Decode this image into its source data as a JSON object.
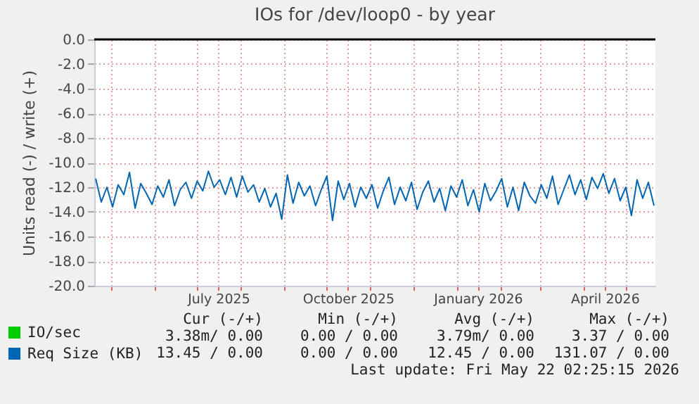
{
  "chart_data": {
    "type": "line",
    "title": "IOs for /dev/loop0 - by year",
    "ylabel": "Units read (-) / write (+)",
    "x": [
      "2025-04-20",
      "2025-04-24",
      "2025-04-28",
      "2025-05-02",
      "2025-05-06",
      "2025-05-10",
      "2025-05-14",
      "2025-05-18",
      "2025-05-22",
      "2025-05-26",
      "2025-05-30",
      "2025-06-03",
      "2025-06-07",
      "2025-06-11",
      "2025-06-15",
      "2025-06-19",
      "2025-06-23",
      "2025-06-27",
      "2025-07-01",
      "2025-07-05",
      "2025-07-09",
      "2025-07-13",
      "2025-07-17",
      "2025-07-21",
      "2025-07-25",
      "2025-07-29",
      "2025-08-02",
      "2025-08-06",
      "2025-08-10",
      "2025-08-14",
      "2025-08-18",
      "2025-08-22",
      "2025-08-26",
      "2025-08-30",
      "2025-09-03",
      "2025-09-07",
      "2025-09-11",
      "2025-09-15",
      "2025-09-19",
      "2025-09-23",
      "2025-09-27",
      "2025-10-01",
      "2025-10-05",
      "2025-10-09",
      "2025-10-13",
      "2025-10-17",
      "2025-10-21",
      "2025-10-25",
      "2025-10-29",
      "2025-11-02",
      "2025-11-06",
      "2025-11-10",
      "2025-11-14",
      "2025-11-18",
      "2025-11-22",
      "2025-11-26",
      "2025-11-30",
      "2025-12-04",
      "2025-12-08",
      "2025-12-12",
      "2025-12-16",
      "2025-12-20",
      "2025-12-24",
      "2025-12-28",
      "2026-01-01",
      "2026-01-05",
      "2026-01-09",
      "2026-01-13",
      "2026-01-17",
      "2026-01-21",
      "2026-01-25",
      "2026-01-29",
      "2026-02-02",
      "2026-02-06",
      "2026-02-10",
      "2026-02-14",
      "2026-02-18",
      "2026-02-22",
      "2026-02-26",
      "2026-03-02",
      "2026-03-06",
      "2026-03-10",
      "2026-03-14",
      "2026-03-18",
      "2026-03-22",
      "2026-03-26",
      "2026-03-30",
      "2026-04-03",
      "2026-04-07",
      "2026-04-11",
      "2026-04-15",
      "2026-04-19",
      "2026-04-23",
      "2026-04-27",
      "2026-05-01",
      "2026-05-05",
      "2026-05-09",
      "2026-05-13",
      "2026-05-17",
      "2026-05-21"
    ],
    "series": [
      {
        "name": "IO/sec",
        "color": "#00cc00",
        "values": [
          null,
          null,
          null,
          null,
          null,
          null,
          null,
          null,
          null,
          null,
          null,
          null,
          null,
          null,
          null,
          null,
          null,
          null,
          null,
          null,
          null,
          null,
          null,
          null,
          null,
          null,
          null,
          null,
          null,
          null,
          null,
          null,
          null,
          null,
          null,
          null,
          null,
          null,
          null,
          null,
          null,
          null,
          null,
          null,
          null,
          null,
          null,
          null,
          null,
          null,
          null,
          null,
          null,
          null,
          null,
          null,
          null,
          null,
          null,
          null,
          null,
          null,
          null,
          null,
          null,
          null,
          null,
          null,
          null,
          null,
          null,
          null,
          null,
          null,
          null,
          null,
          null,
          null,
          null,
          null,
          null,
          null,
          null,
          null,
          null,
          null,
          null,
          null,
          null,
          null,
          null,
          null,
          null,
          null,
          null,
          null,
          null,
          null,
          null,
          null
        ]
      },
      {
        "name": "Req Size (KB)",
        "color": "#0066b3",
        "values": [
          -11.3,
          -13.2,
          -12.0,
          -13.6,
          -11.8,
          -12.6,
          -10.8,
          -13.7,
          -11.7,
          -12.5,
          -13.4,
          -11.9,
          -12.8,
          -11.4,
          -13.5,
          -12.2,
          -11.6,
          -12.9,
          -11.5,
          -12.3,
          -10.7,
          -12.0,
          -11.4,
          -12.6,
          -11.2,
          -12.8,
          -11.1,
          -12.4,
          -11.8,
          -13.2,
          -12.1,
          -13.6,
          -12.5,
          -14.6,
          -11.0,
          -13.3,
          -11.6,
          -12.7,
          -11.9,
          -13.5,
          -12.2,
          -11.1,
          -14.7,
          -11.5,
          -13.0,
          -11.7,
          -13.6,
          -12.0,
          -12.9,
          -11.8,
          -13.7,
          -12.3,
          -11.2,
          -13.4,
          -12.0,
          -13.1,
          -11.6,
          -13.8,
          -12.4,
          -11.5,
          -13.2,
          -12.1,
          -13.9,
          -11.9,
          -12.8,
          -11.4,
          -13.5,
          -12.2,
          -14.0,
          -11.7,
          -13.1,
          -12.3,
          -11.3,
          -13.6,
          -12.0,
          -13.9,
          -11.6,
          -12.7,
          -13.3,
          -11.8,
          -12.9,
          -11.1,
          -13.4,
          -12.2,
          -11.0,
          -12.6,
          -11.4,
          -13.0,
          -11.2,
          -12.1,
          -10.9,
          -12.5,
          -11.3,
          -13.1,
          -12.0,
          -14.3,
          -11.4,
          -12.9,
          -11.6,
          -13.5
        ]
      }
    ],
    "xlim": [
      "2025-04-19",
      "2026-05-22"
    ],
    "xticks": [
      {
        "value": "2025-05-01",
        "label": null
      },
      {
        "value": "2025-06-01",
        "label": null
      },
      {
        "value": "2025-07-01",
        "label": null
      },
      {
        "value": "2025-07-16",
        "label": "July 2025"
      },
      {
        "value": "2025-08-01",
        "label": null
      },
      {
        "value": "2025-09-01",
        "label": null
      },
      {
        "value": "2025-10-01",
        "label": null
      },
      {
        "value": "2025-10-16",
        "label": "October 2025"
      },
      {
        "value": "2025-11-01",
        "label": null
      },
      {
        "value": "2025-12-01",
        "label": null
      },
      {
        "value": "2026-01-01",
        "label": null
      },
      {
        "value": "2026-01-16",
        "label": "January 2026"
      },
      {
        "value": "2026-02-01",
        "label": null
      },
      {
        "value": "2026-03-01",
        "label": null
      },
      {
        "value": "2026-04-01",
        "label": null
      },
      {
        "value": "2026-04-16",
        "label": "April 2026"
      },
      {
        "value": "2026-05-01",
        "label": null
      }
    ],
    "ylim": [
      -20,
      0
    ],
    "yticks": [
      {
        "value": -20,
        "label": "-20.0"
      },
      {
        "value": -18,
        "label": "-18.0"
      },
      {
        "value": -16,
        "label": "-16.0"
      },
      {
        "value": -14,
        "label": "-14.0"
      },
      {
        "value": -12,
        "label": "-12.0"
      },
      {
        "value": -10,
        "label": "-10.0"
      },
      {
        "value": -8,
        "label": "-8.0"
      },
      {
        "value": -6,
        "label": "-6.0"
      },
      {
        "value": -4,
        "label": "-4.0"
      },
      {
        "value": -2,
        "label": "-2.0"
      },
      {
        "value": 0,
        "label": "0.0"
      }
    ],
    "grid": true,
    "legend": "bottom left",
    "ref_lines": [
      {
        "axis": "y",
        "value": 0,
        "color": "#000000"
      }
    ],
    "annotations": [
      "Cur (-/+)",
      "Min (-/+)",
      "Avg (-/+)",
      "Max (-/+)",
      "3.38m/ 0.00",
      "0.00 / 0.00",
      "3.79m/ 0.00",
      "3.37 / 0.00",
      "13.45 / 0.00",
      "0.00 / 0.00",
      "12.45 / 0.00",
      "131.07 / 0.00",
      "Last update: Fri May 22 02:25:15 2026"
    ]
  }
}
